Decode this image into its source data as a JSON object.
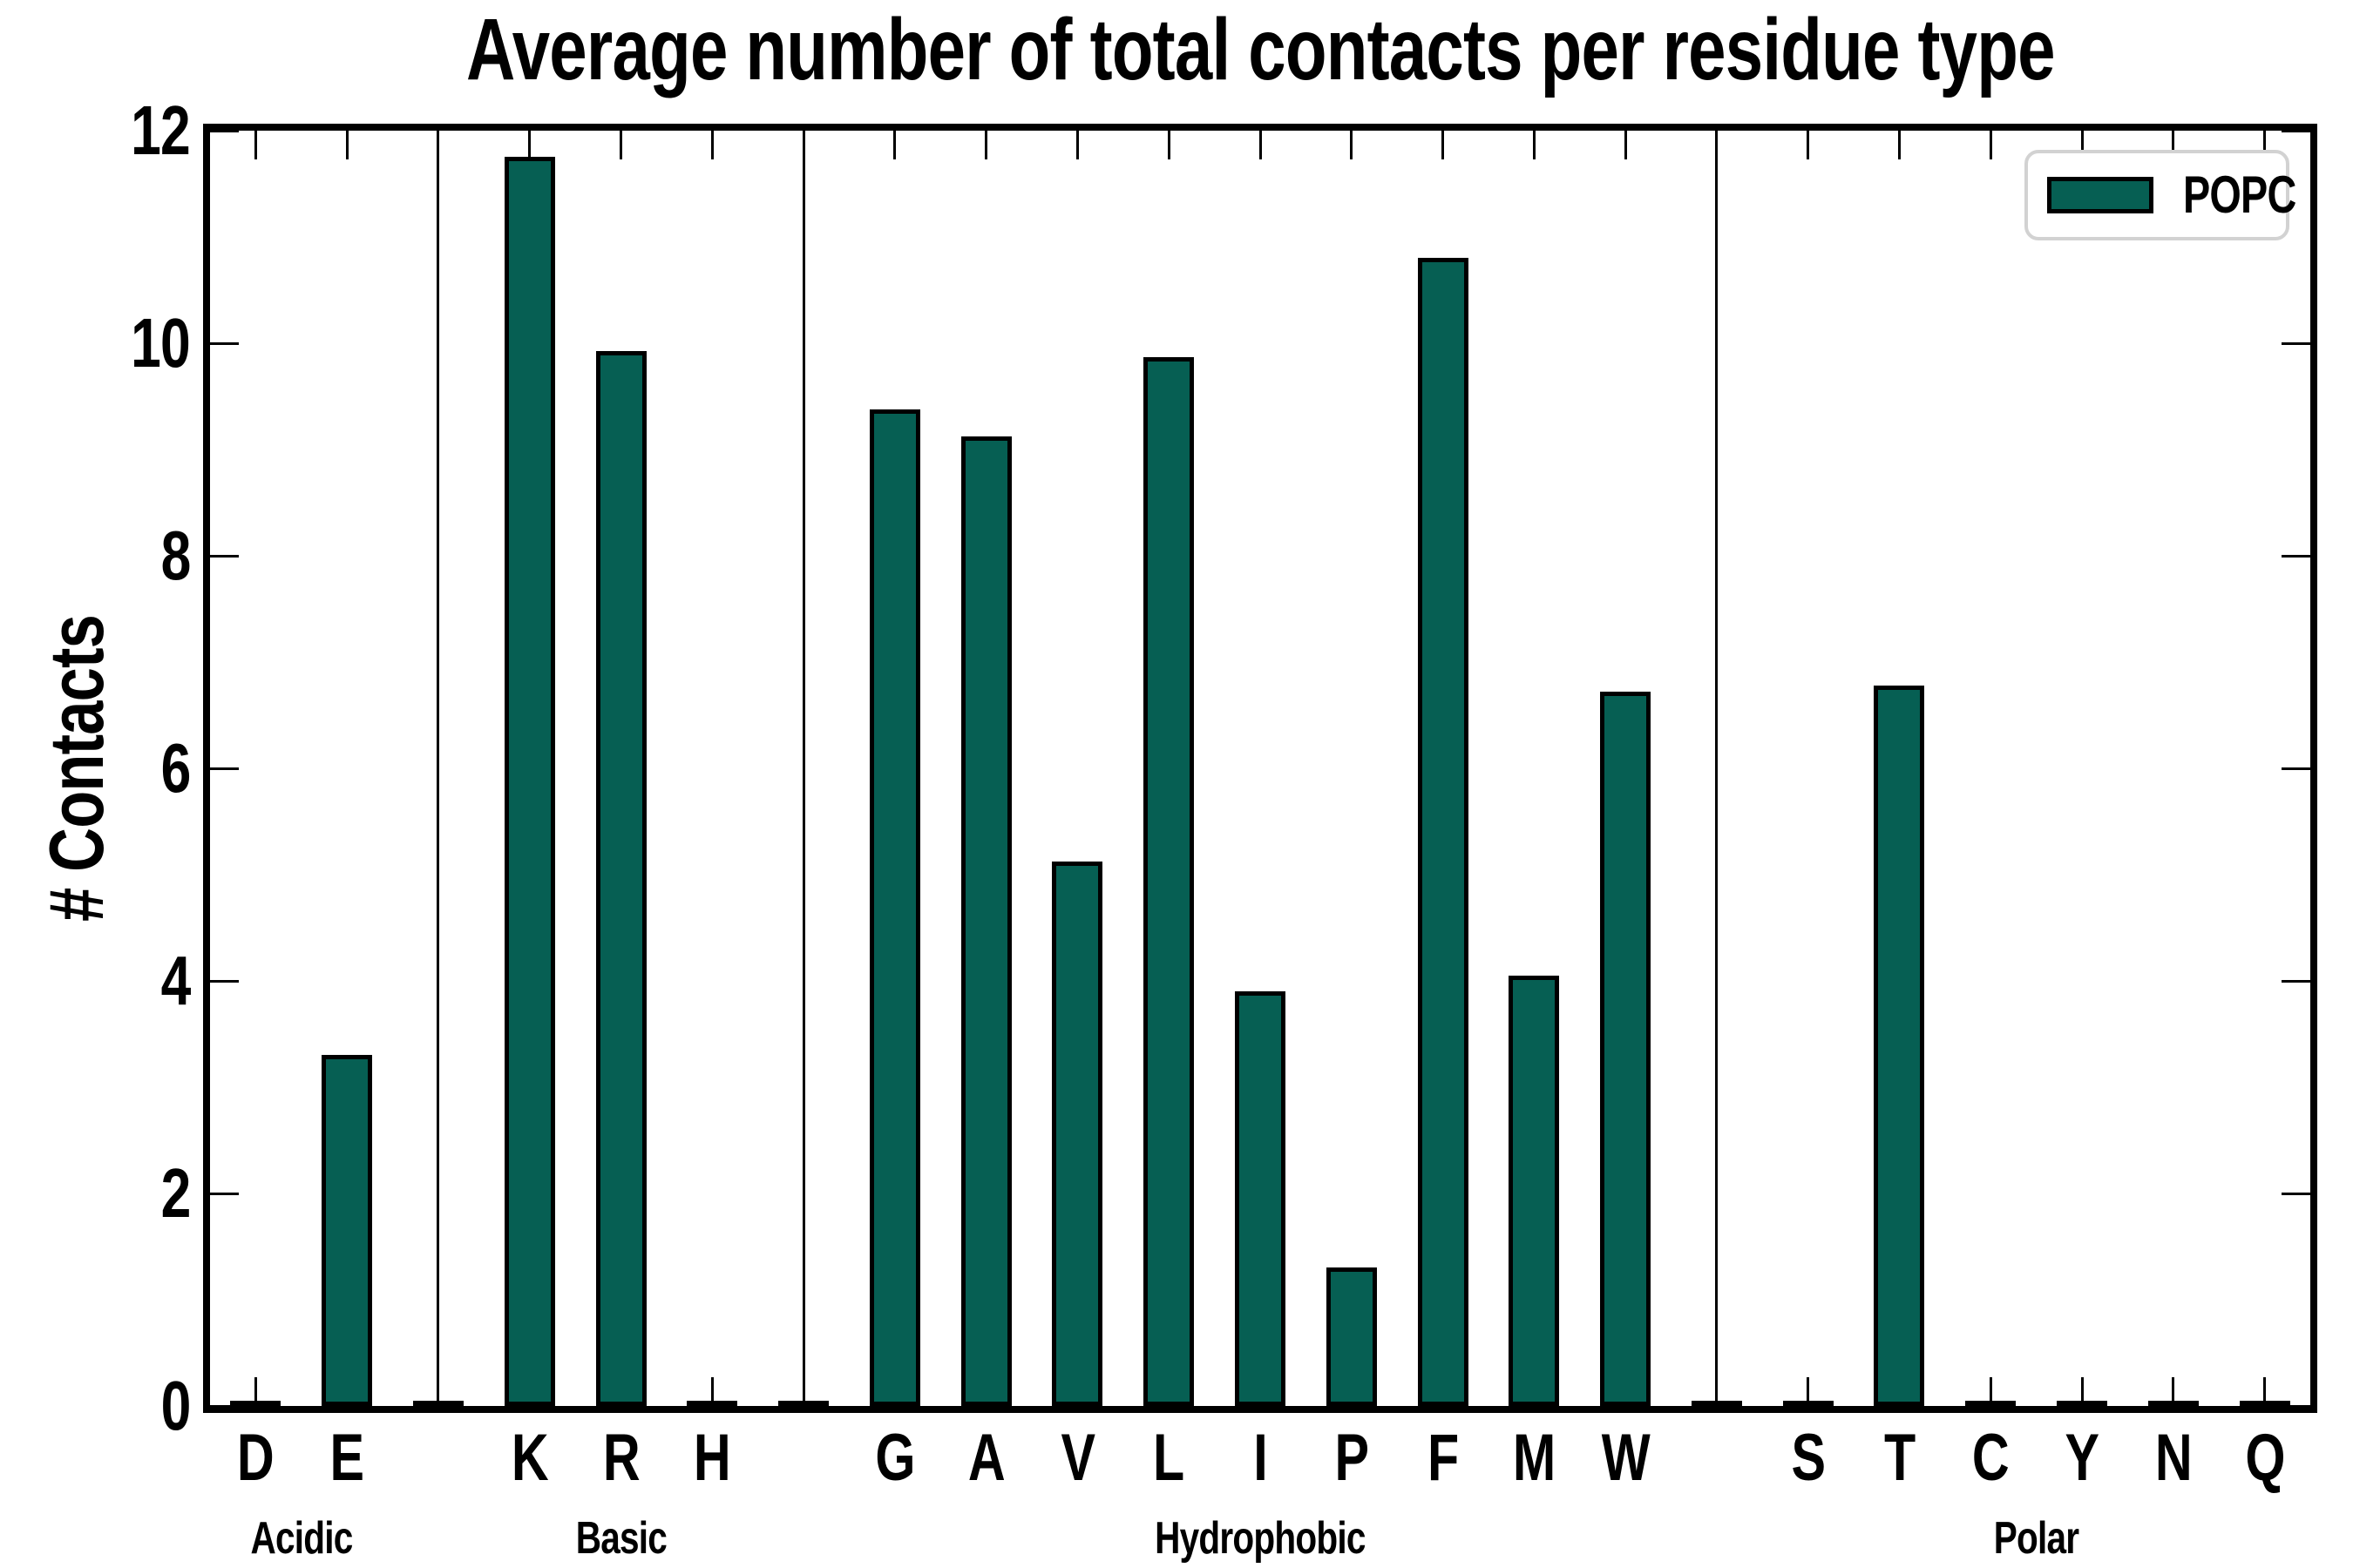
{
  "title": "Average number of total contacts per residue type",
  "y_axis": {
    "label": "# Contacts",
    "ticks": [
      0,
      2,
      4,
      6,
      8,
      10,
      12
    ],
    "min": 0,
    "max": 12
  },
  "legend": {
    "label": "POPC",
    "position": "upper right"
  },
  "colors": {
    "bar_fill": "#065f53",
    "bar_edge": "#000000",
    "axis": "#000000",
    "legend_border": "#d2d2d2",
    "background": "#ffffff",
    "text": "#000000"
  },
  "chart_data": {
    "type": "bar",
    "title": "Average number of total contacts per residue type",
    "xlabel": "",
    "ylabel": "# Contacts",
    "ylim": [
      0,
      12
    ],
    "yticks": [
      0,
      2,
      4,
      6,
      8,
      10,
      12
    ],
    "grid": false,
    "legend_position": "upper right",
    "series_name": "POPC",
    "groups": [
      {
        "name": "Acidic",
        "categories": [
          "D",
          "E"
        ],
        "values": [
          0.05,
          3.3
        ]
      },
      {
        "name": "Basic",
        "categories": [
          "K",
          "R",
          "H"
        ],
        "values": [
          11.75,
          9.93,
          0.04
        ]
      },
      {
        "name": "Hydrophobic",
        "categories": [
          "G",
          "A",
          "V",
          "L",
          "I",
          "P",
          "F",
          "M",
          "W"
        ],
        "values": [
          9.38,
          9.12,
          5.12,
          9.87,
          3.9,
          1.3,
          10.8,
          4.05,
          6.72
        ]
      },
      {
        "name": "Polar",
        "categories": [
          "S",
          "T",
          "C",
          "Y",
          "N",
          "Q"
        ],
        "values": [
          0.04,
          6.78,
          0.04,
          0.04,
          0.03,
          0.03
        ]
      }
    ],
    "separator_value": 0.04
  }
}
